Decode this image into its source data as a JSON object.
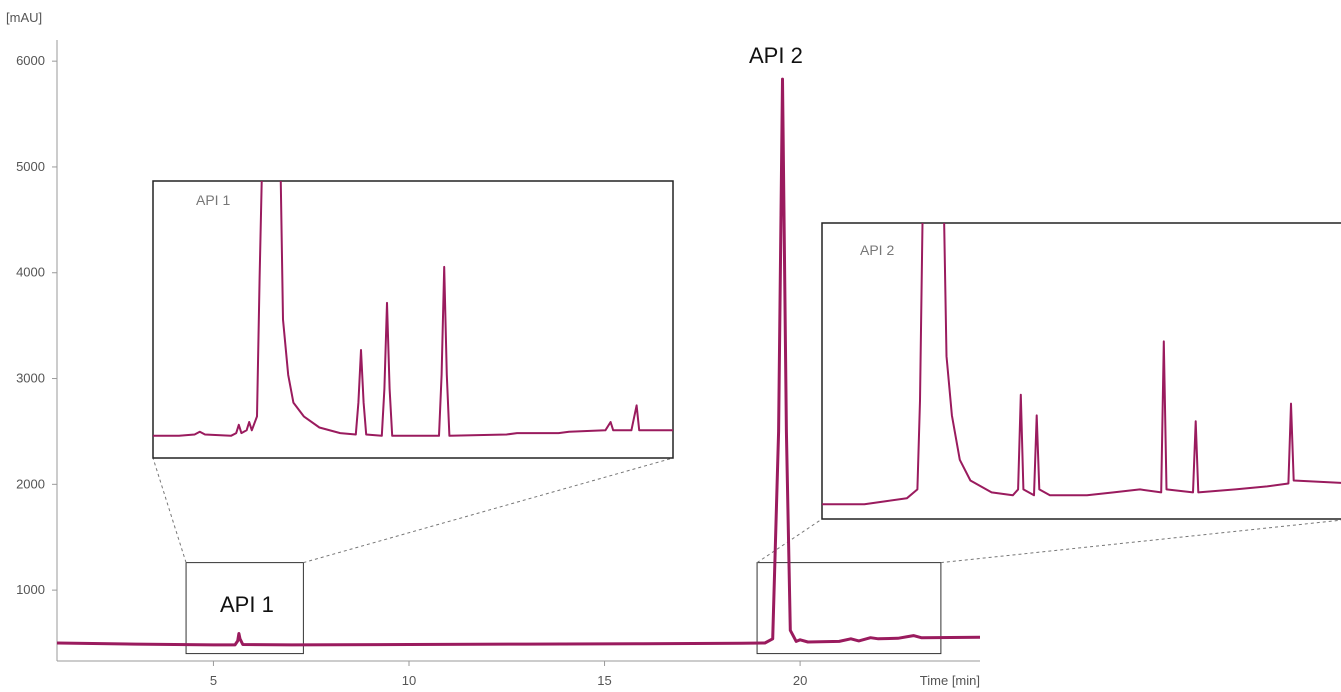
{
  "chart_data": {
    "type": "line",
    "xlabel": "Time [min]",
    "ylabel": "[mAU]",
    "xlim": [
      1,
      24.6
    ],
    "ylim": [
      330,
      6200
    ],
    "x_ticks": [
      "5",
      "10",
      "15",
      "20"
    ],
    "y_ticks": [
      "1000",
      "2000",
      "3000",
      "4000",
      "5000",
      "6000"
    ],
    "color": "#9a1b5e",
    "series": [
      {
        "points": [
          [
            1.0,
            500
          ],
          [
            3.0,
            490
          ],
          [
            5.0,
            482
          ],
          [
            5.55,
            482
          ],
          [
            5.62,
            520
          ],
          [
            5.65,
            590
          ],
          [
            5.68,
            540
          ],
          [
            5.75,
            486
          ],
          [
            7.0,
            482
          ],
          [
            10.0,
            486
          ],
          [
            13.0,
            490
          ],
          [
            16.0,
            494
          ],
          [
            18.5,
            498
          ],
          [
            19.1,
            500
          ],
          [
            19.3,
            540
          ],
          [
            19.45,
            2500
          ],
          [
            19.55,
            5830
          ],
          [
            19.65,
            2500
          ],
          [
            19.75,
            620
          ],
          [
            19.9,
            515
          ],
          [
            20.0,
            530
          ],
          [
            20.2,
            510
          ],
          [
            21.0,
            515
          ],
          [
            21.3,
            540
          ],
          [
            21.5,
            520
          ],
          [
            21.8,
            550
          ],
          [
            22.0,
            540
          ],
          [
            22.5,
            545
          ],
          [
            22.9,
            570
          ],
          [
            23.1,
            550
          ],
          [
            24.6,
            555
          ]
        ]
      }
    ],
    "annotations": [
      "API 1",
      "API 2"
    ],
    "insets": [
      {
        "label": "API 1",
        "zoom_x": [
          4.3,
          7.3
        ],
        "zoom_y": [
          400,
          1260
        ],
        "trace": [
          [
            0.0,
            0.08
          ],
          [
            0.05,
            0.08
          ],
          [
            0.08,
            0.085
          ],
          [
            0.09,
            0.095
          ],
          [
            0.1,
            0.085
          ],
          [
            0.15,
            0.08
          ],
          [
            0.16,
            0.09
          ],
          [
            0.165,
            0.12
          ],
          [
            0.17,
            0.09
          ],
          [
            0.18,
            0.1
          ],
          [
            0.185,
            0.13
          ],
          [
            0.19,
            0.1
          ],
          [
            0.2,
            0.15
          ],
          [
            0.205,
            0.65
          ],
          [
            0.21,
            1.08
          ],
          [
            0.245,
            1.08
          ],
          [
            0.25,
            0.5
          ],
          [
            0.26,
            0.3
          ],
          [
            0.27,
            0.2
          ],
          [
            0.29,
            0.15
          ],
          [
            0.32,
            0.11
          ],
          [
            0.36,
            0.09
          ],
          [
            0.39,
            0.085
          ],
          [
            0.395,
            0.2
          ],
          [
            0.4,
            0.39
          ],
          [
            0.405,
            0.2
          ],
          [
            0.41,
            0.085
          ],
          [
            0.44,
            0.08
          ],
          [
            0.445,
            0.25
          ],
          [
            0.45,
            0.56
          ],
          [
            0.455,
            0.25
          ],
          [
            0.46,
            0.08
          ],
          [
            0.55,
            0.08
          ],
          [
            0.555,
            0.3
          ],
          [
            0.56,
            0.69
          ],
          [
            0.565,
            0.3
          ],
          [
            0.57,
            0.08
          ],
          [
            0.68,
            0.085
          ],
          [
            0.7,
            0.09
          ],
          [
            0.78,
            0.09
          ],
          [
            0.8,
            0.095
          ],
          [
            0.87,
            0.1
          ],
          [
            0.88,
            0.13
          ],
          [
            0.885,
            0.1
          ],
          [
            0.92,
            0.1
          ],
          [
            0.93,
            0.19
          ],
          [
            0.935,
            0.1
          ],
          [
            1.0,
            0.1
          ]
        ]
      },
      {
        "label": "API 2",
        "zoom_x": [
          18.9,
          23.6
        ],
        "zoom_y": [
          400,
          1260
        ],
        "trace": [
          [
            0.0,
            0.05
          ],
          [
            0.08,
            0.05
          ],
          [
            0.12,
            0.06
          ],
          [
            0.16,
            0.07
          ],
          [
            0.18,
            0.1
          ],
          [
            0.185,
            0.4
          ],
          [
            0.19,
            1.05
          ],
          [
            0.23,
            1.05
          ],
          [
            0.235,
            0.55
          ],
          [
            0.245,
            0.35
          ],
          [
            0.26,
            0.2
          ],
          [
            0.28,
            0.13
          ],
          [
            0.32,
            0.09
          ],
          [
            0.36,
            0.08
          ],
          [
            0.37,
            0.1
          ],
          [
            0.375,
            0.42
          ],
          [
            0.38,
            0.1
          ],
          [
            0.4,
            0.08
          ],
          [
            0.405,
            0.35
          ],
          [
            0.41,
            0.1
          ],
          [
            0.43,
            0.08
          ],
          [
            0.5,
            0.08
          ],
          [
            0.55,
            0.09
          ],
          [
            0.6,
            0.1
          ],
          [
            0.64,
            0.09
          ],
          [
            0.645,
            0.6
          ],
          [
            0.65,
            0.1
          ],
          [
            0.7,
            0.09
          ],
          [
            0.705,
            0.33
          ],
          [
            0.71,
            0.09
          ],
          [
            0.78,
            0.1
          ],
          [
            0.84,
            0.11
          ],
          [
            0.88,
            0.12
          ],
          [
            0.885,
            0.39
          ],
          [
            0.89,
            0.13
          ],
          [
            1.0,
            0.12
          ]
        ]
      }
    ]
  }
}
